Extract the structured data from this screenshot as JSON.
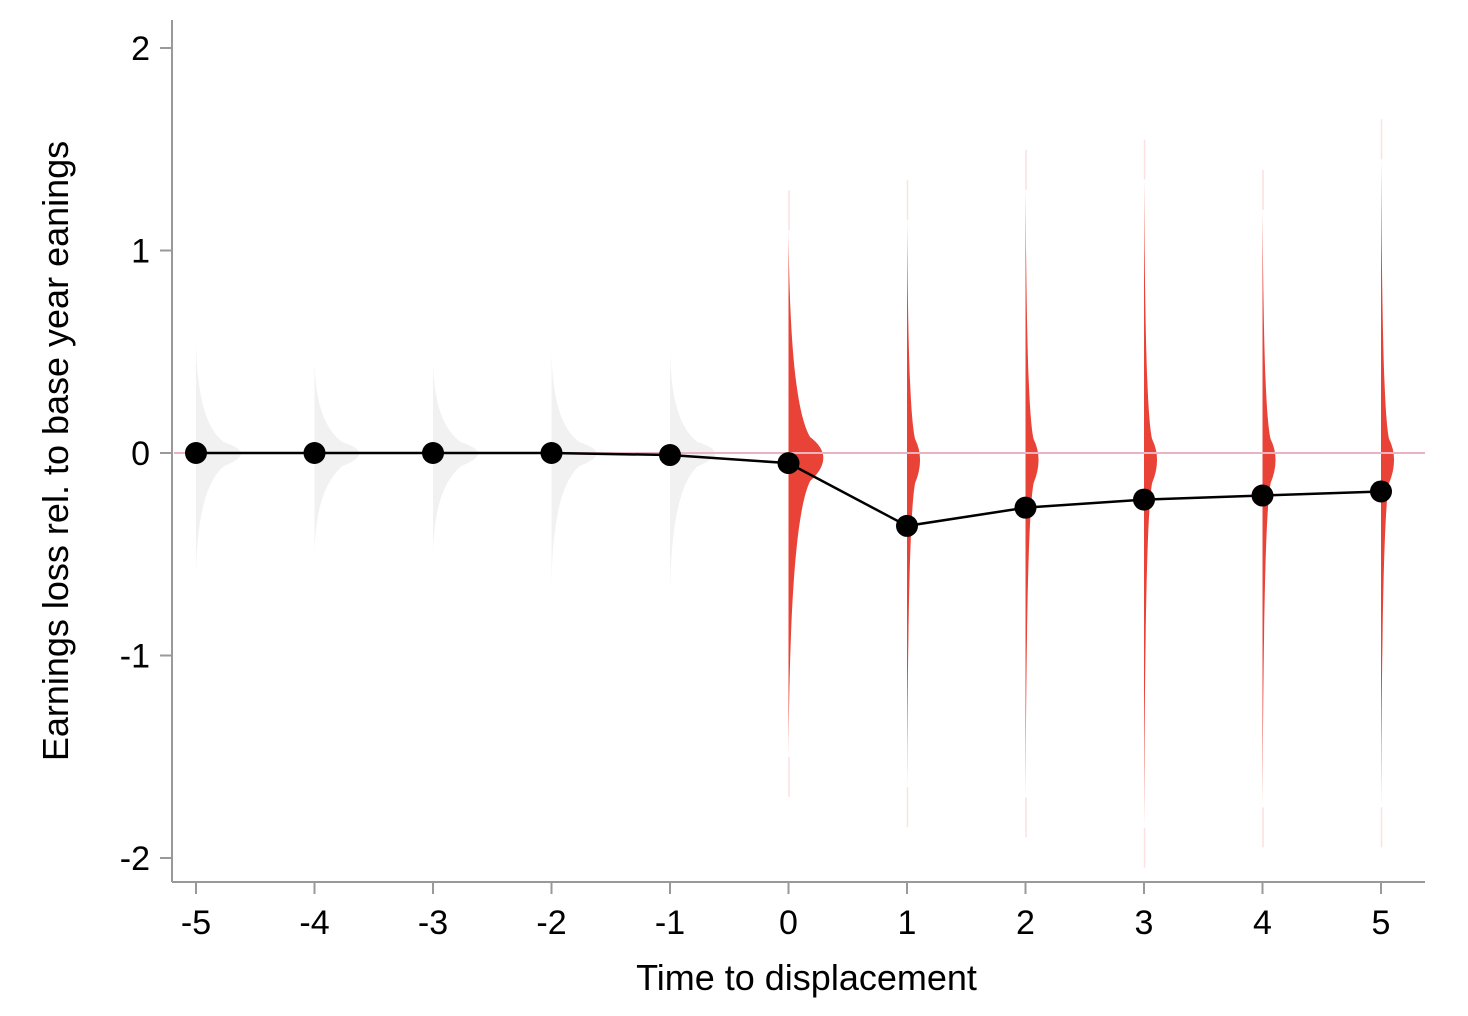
{
  "chart_data": {
    "type": "line",
    "title": "",
    "xlabel": "Time to displacement",
    "ylabel": "Earnings loss rel. to base year eanings",
    "x": [
      -5,
      -4,
      -3,
      -2,
      -1,
      0,
      1,
      2,
      3,
      4,
      5
    ],
    "y": [
      0.0,
      0.0,
      0.0,
      0.0,
      -0.01,
      -0.05,
      -0.36,
      -0.27,
      -0.23,
      -0.21,
      -0.19
    ],
    "xlim": [
      -5.2,
      5.37
    ],
    "ylim": [
      -2.12,
      2.15
    ],
    "xticks": [
      "-5",
      "-4",
      "-3",
      "-2",
      "-1",
      "0",
      "1",
      "2",
      "3",
      "4",
      "5"
    ],
    "yticks": [
      "-2",
      "-1",
      "0",
      "1",
      "2"
    ],
    "reference_line_y": 0,
    "grid": false,
    "colors": {
      "line": "#000000",
      "marker": "#000000",
      "reference_line": "#e8b4c4",
      "pre_distribution": "#eeeeee",
      "post_distribution": "#e8392c",
      "axis": "#999999"
    },
    "distributions": [
      {
        "x": -5,
        "period": "pre",
        "ymin": -0.6,
        "ymax": 0.55
      },
      {
        "x": -4,
        "period": "pre",
        "ymin": -0.5,
        "ymax": 0.45
      },
      {
        "x": -3,
        "period": "pre",
        "ymin": -0.5,
        "ymax": 0.45
      },
      {
        "x": -2,
        "period": "pre",
        "ymin": -0.65,
        "ymax": 0.5
      },
      {
        "x": -1,
        "period": "pre",
        "ymin": -0.7,
        "ymax": 0.5
      },
      {
        "x": 0,
        "period": "post",
        "ymin": -1.5,
        "ymax": 1.1
      },
      {
        "x": 1,
        "period": "post",
        "ymin": -1.65,
        "ymax": 1.15
      },
      {
        "x": 2,
        "period": "post",
        "ymin": -1.7,
        "ymax": 1.3
      },
      {
        "x": 3,
        "period": "post",
        "ymin": -1.85,
        "ymax": 1.35
      },
      {
        "x": 4,
        "period": "post",
        "ymin": -1.75,
        "ymax": 1.2
      },
      {
        "x": 5,
        "period": "post",
        "ymin": -1.75,
        "ymax": 1.45
      }
    ]
  }
}
